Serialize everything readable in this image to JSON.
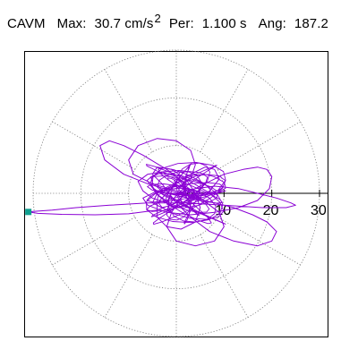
{
  "header": {
    "mode": "CAVM",
    "max_label": "Max:",
    "max_value": "30.7 cm/s",
    "max_exp": "2",
    "per_label": "Per:",
    "per_value": "1.100 s",
    "ang_label": "Ang:",
    "ang_value": "187.2"
  },
  "chart_data": {
    "type": "scatter",
    "subtype": "polar-orbit",
    "title": "CAVM  Max: 30.7 cm/s2  Per: 1.100 s  Ang: 187.2",
    "max_value": 30.7,
    "max_unit": "cm/s2",
    "period_s": 1.1,
    "angle_deg": 187.2,
    "r_ticks": [
      "10",
      "20",
      "30"
    ],
    "r_tick_values": [
      10,
      20,
      30
    ],
    "r_max": 30,
    "angular_grid_deg": [
      0,
      30,
      60,
      90,
      120,
      150,
      180,
      210,
      240,
      270,
      300,
      330
    ],
    "grid": "dotted",
    "peak_marker": {
      "x": -31.0,
      "y": -3.9
    },
    "orbit_points": [
      [
        0,
        0
      ],
      [
        4,
        1
      ],
      [
        8,
        1.5
      ],
      [
        13,
        1
      ],
      [
        17,
        0
      ],
      [
        21,
        -1
      ],
      [
        24,
        -2
      ],
      [
        25,
        -2.5
      ],
      [
        23,
        -3
      ],
      [
        18,
        -3
      ],
      [
        10,
        -2.5
      ],
      [
        2,
        -2
      ],
      [
        -6,
        -2
      ],
      [
        -14,
        -2.5
      ],
      [
        -21,
        -3
      ],
      [
        -26,
        -3.5
      ],
      [
        -30,
        -3.8
      ],
      [
        -31,
        -3.9
      ],
      [
        -29,
        -4.2
      ],
      [
        -24,
        -4.4
      ],
      [
        -17,
        -4.5
      ],
      [
        -10,
        -4.3
      ],
      [
        -4,
        -3.5
      ],
      [
        0,
        -2
      ],
      [
        2,
        0
      ],
      [
        6,
        2
      ],
      [
        10,
        4
      ],
      [
        14,
        5
      ],
      [
        17,
        5.5
      ],
      [
        19,
        5
      ],
      [
        20,
        3.5
      ],
      [
        19.5,
        1
      ],
      [
        17,
        -1.5
      ],
      [
        13,
        -3
      ],
      [
        8,
        -4
      ],
      [
        3,
        -4.5
      ],
      [
        -2,
        -4
      ],
      [
        -6,
        -2.5
      ],
      [
        -7,
        -1
      ],
      [
        -4,
        0.5
      ],
      [
        0,
        1
      ],
      [
        3,
        3
      ],
      [
        4,
        6
      ],
      [
        3,
        9
      ],
      [
        0,
        11
      ],
      [
        -4,
        11.5
      ],
      [
        -8,
        10
      ],
      [
        -10,
        7
      ],
      [
        -9,
        4
      ],
      [
        -5,
        2
      ],
      [
        0,
        0.5
      ],
      [
        5,
        -1
      ],
      [
        9,
        -4
      ],
      [
        10,
        -7
      ],
      [
        8,
        -10
      ],
      [
        4,
        -11
      ],
      [
        0,
        -10
      ],
      [
        -2,
        -7
      ],
      [
        -1,
        -4
      ],
      [
        1,
        -1
      ],
      [
        2,
        2
      ],
      [
        -2,
        5
      ],
      [
        -7,
        8
      ],
      [
        -11,
        10
      ],
      [
        -14,
        11
      ],
      [
        -16,
        10
      ],
      [
        -15,
        7
      ],
      [
        -11,
        4
      ],
      [
        -6,
        2
      ],
      [
        -1,
        0.5
      ],
      [
        4,
        -1
      ],
      [
        8,
        -2
      ],
      [
        12,
        -3
      ],
      [
        16,
        -4.5
      ],
      [
        19,
        -6
      ],
      [
        21,
        -8
      ],
      [
        20,
        -10
      ],
      [
        17,
        -11
      ],
      [
        12,
        -10
      ],
      [
        7,
        -8
      ],
      [
        3,
        -5
      ],
      [
        0,
        -2
      ],
      [
        -3,
        2
      ],
      [
        -5,
        4
      ],
      [
        -4,
        5.5
      ],
      [
        -1,
        5
      ],
      [
        2,
        3
      ],
      [
        4,
        0
      ],
      [
        5,
        -3
      ],
      [
        4,
        -6
      ],
      [
        1,
        -7.5
      ],
      [
        -2,
        -7
      ],
      [
        -4,
        -5
      ],
      [
        -4,
        -2
      ],
      [
        -2,
        0
      ],
      [
        0,
        2
      ],
      [
        3,
        4
      ],
      [
        6,
        5.5
      ],
      [
        8,
        5
      ],
      [
        9,
        3
      ],
      [
        7,
        0.5
      ],
      [
        4,
        -1
      ],
      [
        1,
        -2
      ],
      [
        -2,
        -2
      ],
      [
        -5,
        -1
      ],
      [
        -7,
        0.5
      ],
      [
        -8,
        2.5
      ],
      [
        -6,
        4
      ],
      [
        -3,
        4.5
      ],
      [
        0,
        3.5
      ],
      [
        2,
        1
      ],
      [
        1,
        -1
      ],
      [
        -1,
        -2.5
      ],
      [
        -3,
        -3
      ],
      [
        -5,
        -2
      ],
      [
        -4,
        0
      ],
      [
        -1,
        1.5
      ],
      [
        2,
        1.5
      ],
      [
        4,
        0
      ],
      [
        3,
        -2
      ],
      [
        0,
        -3
      ],
      [
        -2,
        -2
      ],
      [
        -1,
        0
      ],
      [
        0,
        0
      ]
    ]
  }
}
